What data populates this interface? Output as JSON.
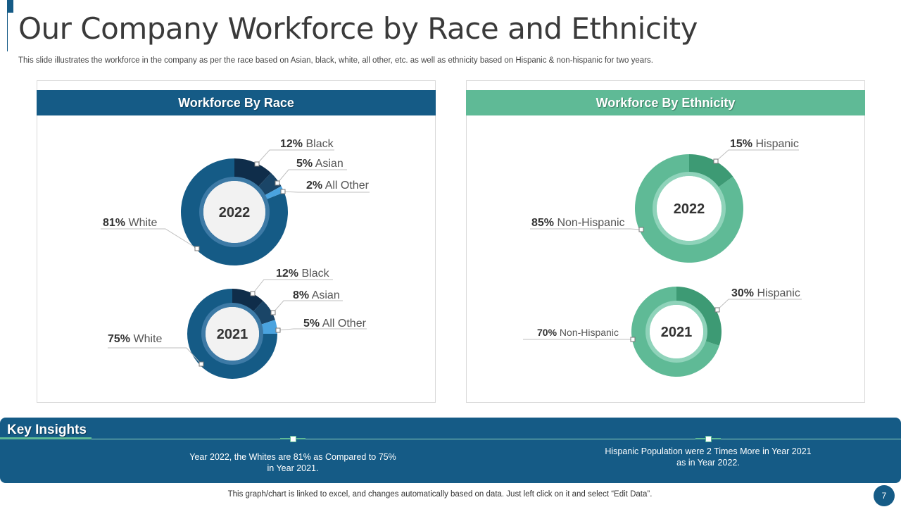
{
  "slide": {
    "title": "Our Company Workforce by Race and Ethnicity",
    "subtitle": "This slide illustrates the workforce in the company as per the race based on Asian, black, white, all other, etc. as well as ethnicity based on Hispanic & non-hispanic for two years.",
    "race_panel_title": "Workforce By Race",
    "ethnicity_panel_title": "Workforce By Ethnicity",
    "insights_title": "Key Insights",
    "insight_1": "Year 2022, the Whites are 81% as Compared  to 75% in Year 2021.",
    "insight_2": "Hispanic Population were 2 Times More in Year 2021 as in Year 2022.",
    "footer": "This graph/chart is linked to excel,  and changes automatically based on data. Just left click on it and select “Edit Data”.",
    "page_number": "7"
  },
  "colors": {
    "primary": "#155b86",
    "accent": "#5fba96"
  },
  "chart_data": [
    {
      "type": "pie",
      "title": "Workforce By Race",
      "center_label": "2022",
      "categories": [
        "White",
        "Black",
        "Asian",
        "All Other"
      ],
      "values": [
        81,
        12,
        5,
        2
      ],
      "value_labels": [
        "81%",
        "12%",
        "5%",
        "2%"
      ],
      "colors": [
        "#155b86",
        "#0f2d4a",
        "#1a4567",
        "#4aa3df"
      ]
    },
    {
      "type": "pie",
      "title": "Workforce By Race",
      "center_label": "2021",
      "categories": [
        "White",
        "Black",
        "Asian",
        "All Other"
      ],
      "values": [
        75,
        12,
        8,
        5
      ],
      "value_labels": [
        "75%",
        "12%",
        "8%",
        "5%"
      ],
      "colors": [
        "#155b86",
        "#0f2d4a",
        "#1a4567",
        "#4aa3df"
      ]
    },
    {
      "type": "pie",
      "title": "Workforce By Ethnicity",
      "center_label": "2022",
      "categories": [
        "Non-Hispanic",
        "Hispanic"
      ],
      "values": [
        85,
        15
      ],
      "value_labels": [
        "85%",
        "15%"
      ],
      "colors": [
        "#5fba96",
        "#3d9a74"
      ]
    },
    {
      "type": "pie",
      "title": "Workforce By Ethnicity",
      "center_label": "2021",
      "categories": [
        "Non-Hispanic",
        "Hispanic"
      ],
      "values": [
        70,
        30
      ],
      "value_labels": [
        "70%",
        "30%"
      ],
      "colors": [
        "#5fba96",
        "#3d9a74"
      ]
    }
  ]
}
